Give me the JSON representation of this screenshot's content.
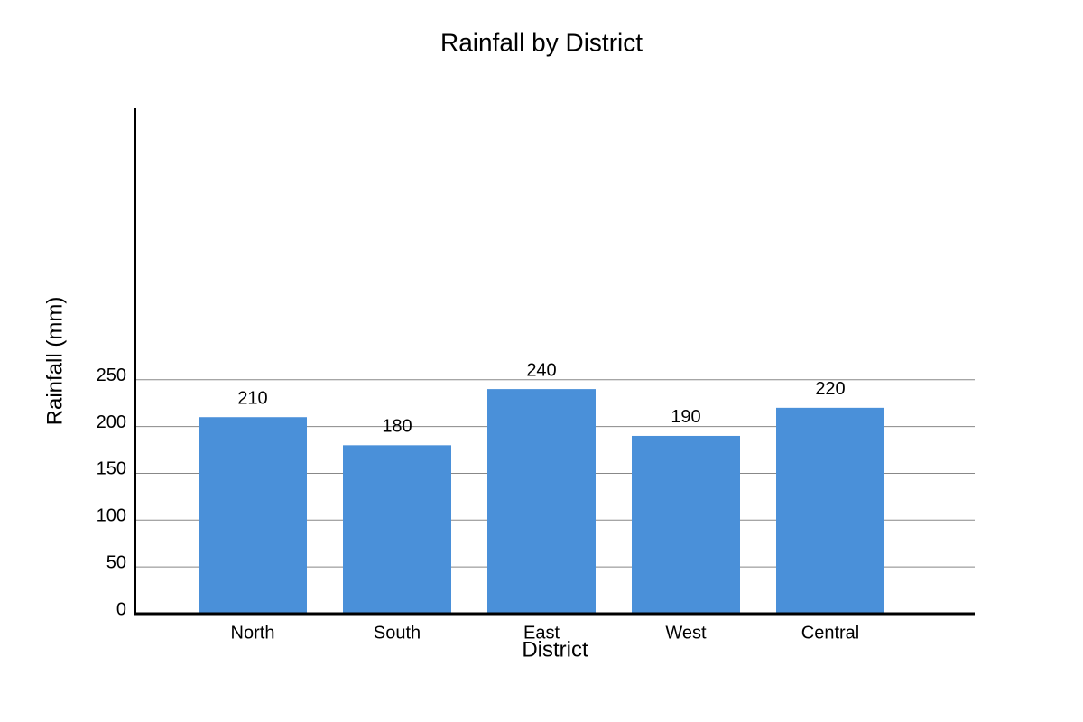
{
  "chart_data": {
    "type": "bar",
    "title": "Rainfall by District",
    "x_label": "District",
    "y_label": "Rainfall (mm)",
    "categories": [
      "North",
      "South",
      "East",
      "West",
      "Central"
    ],
    "values": [
      210,
      180,
      240,
      190,
      220
    ],
    "color": "#4a90d9",
    "ylim": [
      0,
      540
    ],
    "yticks": [
      0,
      50,
      100,
      150,
      200,
      250
    ],
    "grid": true
  }
}
